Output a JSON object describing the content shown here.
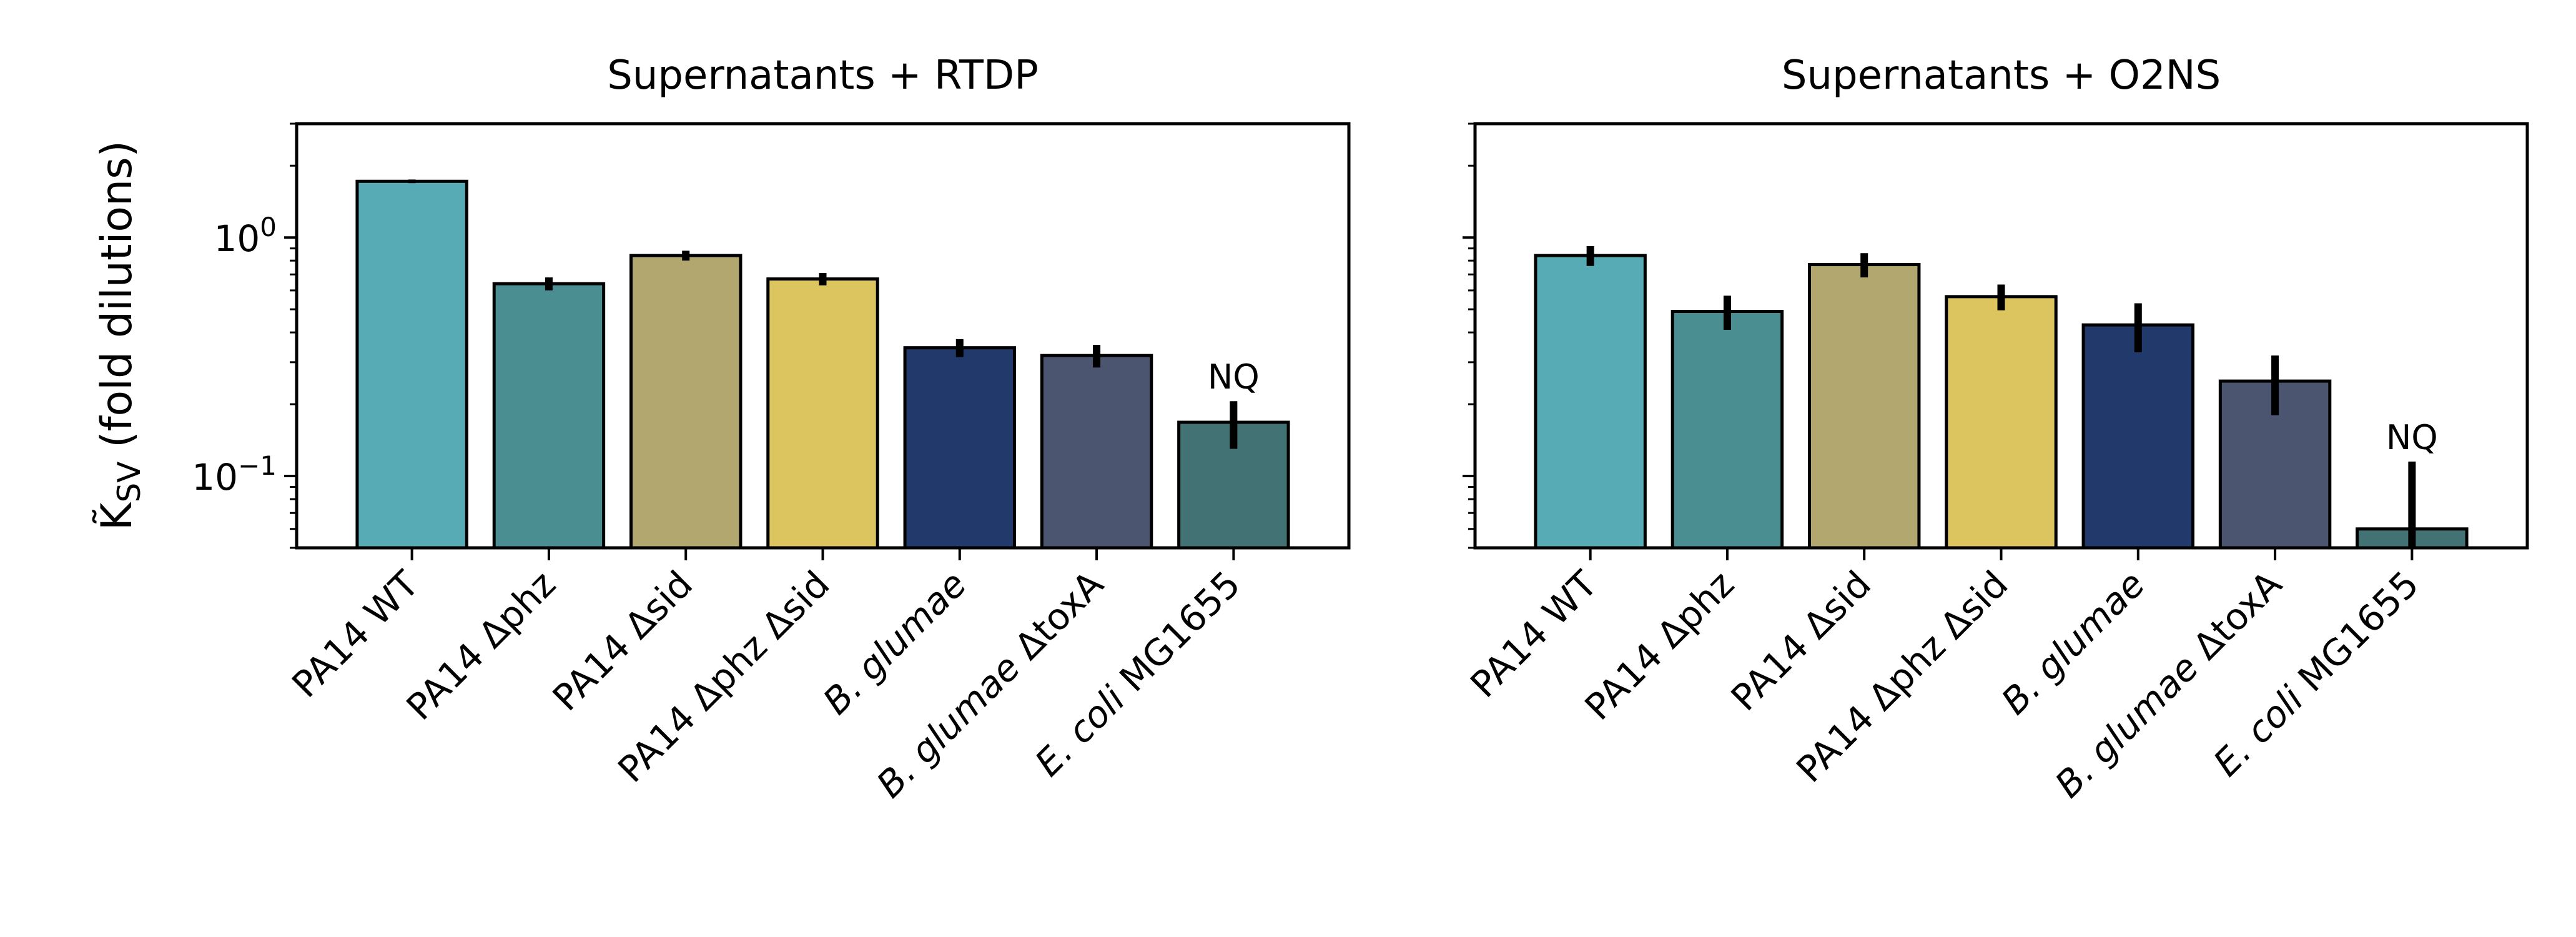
{
  "chart_data": [
    {
      "type": "bar",
      "title": "Supernatants + RTDP",
      "ylabel": "K̃SV (fold dilutions)",
      "ylabel_main": "K̃",
      "ylabel_sub": "SV",
      "ylabel_rest": " (fold dilutions)",
      "yscale": "log",
      "ylim": [
        0.05,
        3.0
      ],
      "yticks": [
        {
          "value": 1.0,
          "label_base": "10",
          "label_exp": "0"
        },
        {
          "value": 0.1,
          "label_base": "10",
          "label_exp": "−1"
        }
      ],
      "categories": [
        {
          "plain": "PA14 WT",
          "italic": "",
          "rest": ""
        },
        {
          "plain": "PA14 Δphz",
          "italic": "",
          "rest": ""
        },
        {
          "plain": "PA14 Δsid",
          "italic": "",
          "rest": ""
        },
        {
          "plain": "PA14 Δphz Δsid",
          "italic": "",
          "rest": ""
        },
        {
          "plain": "",
          "italic": "B. glumae",
          "rest": ""
        },
        {
          "plain": "",
          "italic": "B. glumae",
          "rest": " ΔtoxA"
        },
        {
          "plain": "",
          "italic": "E. coli",
          "rest": " MG1655"
        }
      ],
      "values": [
        1.72,
        0.64,
        0.84,
        0.67,
        0.345,
        0.32,
        0.168
      ],
      "errors": [
        0.03,
        0.04,
        0.04,
        0.04,
        0.03,
        0.035,
        0.038
      ],
      "colors": [
        "#56abb4",
        "#4a8e92",
        "#b2a76f",
        "#dcc55f",
        "#21396b",
        "#4c5570",
        "#427273"
      ],
      "annotations": [
        {
          "category_index": 6,
          "text": "NQ"
        }
      ]
    },
    {
      "type": "bar",
      "title": "Supernatants + O2NS",
      "yscale": "log",
      "ylim": [
        0.05,
        3.0
      ],
      "categories": [
        {
          "plain": "PA14 WT",
          "italic": "",
          "rest": ""
        },
        {
          "plain": "PA14 Δphz",
          "italic": "",
          "rest": ""
        },
        {
          "plain": "PA14 Δsid",
          "italic": "",
          "rest": ""
        },
        {
          "plain": "PA14 Δphz Δsid",
          "italic": "",
          "rest": ""
        },
        {
          "plain": "",
          "italic": "B. glumae",
          "rest": ""
        },
        {
          "plain": "",
          "italic": "B. glumae",
          "rest": " ΔtoxA"
        },
        {
          "plain": "",
          "italic": "E. coli",
          "rest": " MG1655"
        }
      ],
      "values": [
        0.84,
        0.49,
        0.77,
        0.565,
        0.43,
        0.25,
        0.06
      ],
      "errors": [
        0.08,
        0.08,
        0.09,
        0.07,
        0.1,
        0.07,
        0.055
      ],
      "colors": [
        "#56abb4",
        "#4a8e92",
        "#b2a76f",
        "#dcc55f",
        "#21396b",
        "#4c5570",
        "#427273"
      ],
      "annotations": [
        {
          "category_index": 6,
          "text": "NQ"
        }
      ]
    }
  ]
}
